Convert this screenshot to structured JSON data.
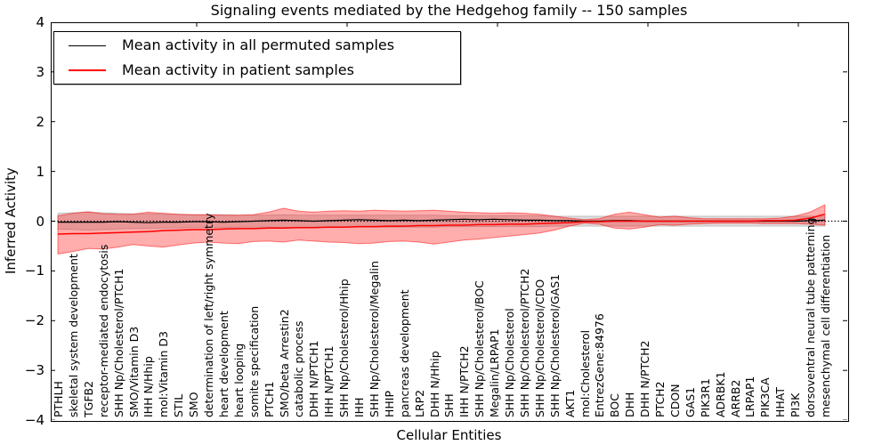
{
  "title": "Signaling events mediated by the Hedgehog family -- 150 samples",
  "axes": {
    "ylabel": "Inferred Activity",
    "xlabel": "Cellular Entities",
    "yticks": [
      4,
      3,
      2,
      1,
      0,
      -1,
      -2,
      -3,
      -4
    ],
    "ylim": [
      -4,
      4
    ]
  },
  "legend": {
    "items": [
      {
        "label": "Mean activity in all permuted samples",
        "color": "#000000",
        "thickness": 1.5
      },
      {
        "label": "Mean activity in patient samples",
        "color": "#ff0000",
        "thickness": 2
      }
    ]
  },
  "chart_data": {
    "type": "line",
    "title": "Signaling events mediated by the Hedgehog family -- 150 samples",
    "xlabel": "Cellular Entities",
    "ylabel": "Inferred Activity",
    "ylim": [
      -4,
      4
    ],
    "grid": false,
    "legend_position": "upper-left",
    "zero_baseline": {
      "value": 0,
      "style": "dotted",
      "color": "#000000"
    },
    "categories": [
      "PTHLH",
      "skeletal system development",
      "TGFB2",
      "receptor-mediated endocytosis",
      "SHH Np/Cholesterol/PTCH1",
      "SMO/Vitamin D3",
      "IHH N/Hhip",
      "mol:Vitamin D3",
      "STIL",
      "SMO",
      "determination of left/right symmetry",
      "heart development",
      "heart looping",
      "somite specification",
      "PTCH1",
      "SMO/beta Arrestin2",
      "catabolic process",
      "DHH N/PTCH1",
      "IHH N/PTCH1",
      "SHH Np/Cholesterol/Hhip",
      "IHH",
      "SHH Np/Cholesterol/Megalin",
      "HHIP",
      "pancreas development",
      "LRP2",
      "DHH N/Hhip",
      "SHH",
      "IHH N/PTCH2",
      "SHH Np/Cholesterol/BOC",
      "Megalin/LRPAP1",
      "SHH Np/Cholesterol",
      "SHH Np/Cholesterol/PTCH2",
      "SHH Np/Cholesterol/CDO",
      "SHH Np/Cholesterol/GAS1",
      "AKT1",
      "mol:Cholesterol",
      "EntrezGene:84976",
      "BOC",
      "DHH",
      "DHH N/PTCH2",
      "PTCH2",
      "CDON",
      "GAS1",
      "PIK3R1",
      "ADRBK1",
      "ARRB2",
      "LRPAP1",
      "PIK3CA",
      "HHAT",
      "PI3K",
      "dorsoventral neural tube patterning",
      "mesenchymal cell differentiation"
    ],
    "series": [
      {
        "name": "Mean activity in all permuted samples",
        "color": "#000000",
        "width": 1.2,
        "values": [
          -0.02,
          -0.02,
          -0.02,
          -0.02,
          -0.01,
          -0.02,
          -0.03,
          -0.02,
          -0.02,
          -0.01,
          -0.01,
          -0.02,
          -0.01,
          0.0,
          0.01,
          0.02,
          0.01,
          0.0,
          0.01,
          0.02,
          0.03,
          0.02,
          0.01,
          0.02,
          0.01,
          0.02,
          0.03,
          0.04,
          0.03,
          0.04,
          0.03,
          0.02,
          0.02,
          0.01,
          0.01,
          0.0,
          0.0,
          0.01,
          0.01,
          0.0,
          0.0,
          0.0,
          0.0,
          0.0,
          0.0,
          0.0,
          0.0,
          0.0,
          0.0,
          0.0,
          0.01,
          0.02
        ]
      },
      {
        "name": "Mean activity in patient samples",
        "color": "#ff0000",
        "width": 1.5,
        "values": [
          -0.26,
          -0.25,
          -0.25,
          -0.24,
          -0.23,
          -0.22,
          -0.21,
          -0.19,
          -0.18,
          -0.17,
          -0.17,
          -0.16,
          -0.15,
          -0.15,
          -0.14,
          -0.14,
          -0.13,
          -0.13,
          -0.12,
          -0.12,
          -0.11,
          -0.11,
          -0.1,
          -0.1,
          -0.09,
          -0.09,
          -0.08,
          -0.08,
          -0.07,
          -0.07,
          -0.06,
          -0.06,
          -0.05,
          -0.04,
          -0.03,
          -0.01,
          -0.01,
          0.0,
          0.0,
          0.0,
          0.0,
          0.0,
          0.0,
          0.0,
          0.0,
          0.0,
          0.0,
          0.01,
          0.01,
          0.02,
          0.06,
          0.14
        ]
      }
    ],
    "bands": [
      {
        "name": "permuted samples confidence band",
        "fill": "rgba(0,0,0,0.13)",
        "edge": "rgba(0,0,0,0.18)",
        "upper": [
          0.16,
          0.17,
          0.18,
          0.17,
          0.16,
          0.15,
          0.15,
          0.14,
          0.14,
          0.13,
          0.13,
          0.13,
          0.12,
          0.12,
          0.12,
          0.13,
          0.12,
          0.12,
          0.12,
          0.12,
          0.12,
          0.12,
          0.12,
          0.12,
          0.12,
          0.12,
          0.11,
          0.11,
          0.11,
          0.11,
          0.11,
          0.11,
          0.11,
          0.1,
          0.1,
          0.1,
          0.1,
          0.1,
          0.1,
          0.1,
          0.1,
          0.1,
          0.1,
          0.1,
          0.1,
          0.1,
          0.1,
          0.1,
          0.1,
          0.1,
          0.1,
          0.1
        ],
        "lower": [
          -0.16,
          -0.17,
          -0.18,
          -0.17,
          -0.16,
          -0.15,
          -0.15,
          -0.14,
          -0.14,
          -0.13,
          -0.13,
          -0.13,
          -0.12,
          -0.12,
          -0.12,
          -0.13,
          -0.12,
          -0.12,
          -0.12,
          -0.12,
          -0.12,
          -0.12,
          -0.12,
          -0.12,
          -0.12,
          -0.12,
          -0.11,
          -0.11,
          -0.11,
          -0.11,
          -0.11,
          -0.11,
          -0.11,
          -0.1,
          -0.1,
          -0.1,
          -0.1,
          -0.1,
          -0.1,
          -0.1,
          -0.1,
          -0.1,
          -0.1,
          -0.1,
          -0.1,
          -0.1,
          -0.1,
          -0.1,
          -0.1,
          -0.1,
          -0.1,
          -0.1
        ]
      },
      {
        "name": "patient samples confidence band",
        "fill": "rgba(255,0,0,0.32)",
        "edge": "rgba(255,0,0,0.5)",
        "upper": [
          0.11,
          0.16,
          0.19,
          0.15,
          0.14,
          0.14,
          0.18,
          0.16,
          0.14,
          0.13,
          0.13,
          0.12,
          0.12,
          0.13,
          0.18,
          0.26,
          0.2,
          0.18,
          0.2,
          0.21,
          0.2,
          0.22,
          0.21,
          0.2,
          0.21,
          0.22,
          0.2,
          0.18,
          0.17,
          0.16,
          0.17,
          0.16,
          0.14,
          0.1,
          0.06,
          0.03,
          0.05,
          0.14,
          0.18,
          0.13,
          0.08,
          0.1,
          0.07,
          0.05,
          0.05,
          0.05,
          0.05,
          0.05,
          0.06,
          0.1,
          0.18,
          0.33
        ],
        "lower": [
          -0.66,
          -0.61,
          -0.55,
          -0.56,
          -0.52,
          -0.47,
          -0.5,
          -0.52,
          -0.48,
          -0.44,
          -0.42,
          -0.44,
          -0.45,
          -0.41,
          -0.4,
          -0.42,
          -0.38,
          -0.4,
          -0.42,
          -0.43,
          -0.45,
          -0.44,
          -0.41,
          -0.4,
          -0.42,
          -0.46,
          -0.42,
          -0.38,
          -0.36,
          -0.33,
          -0.3,
          -0.27,
          -0.24,
          -0.18,
          -0.1,
          -0.04,
          -0.06,
          -0.14,
          -0.16,
          -0.12,
          -0.07,
          -0.08,
          -0.06,
          -0.05,
          -0.04,
          -0.04,
          -0.04,
          -0.05,
          -0.05,
          -0.05,
          -0.06,
          -0.08
        ]
      }
    ]
  }
}
